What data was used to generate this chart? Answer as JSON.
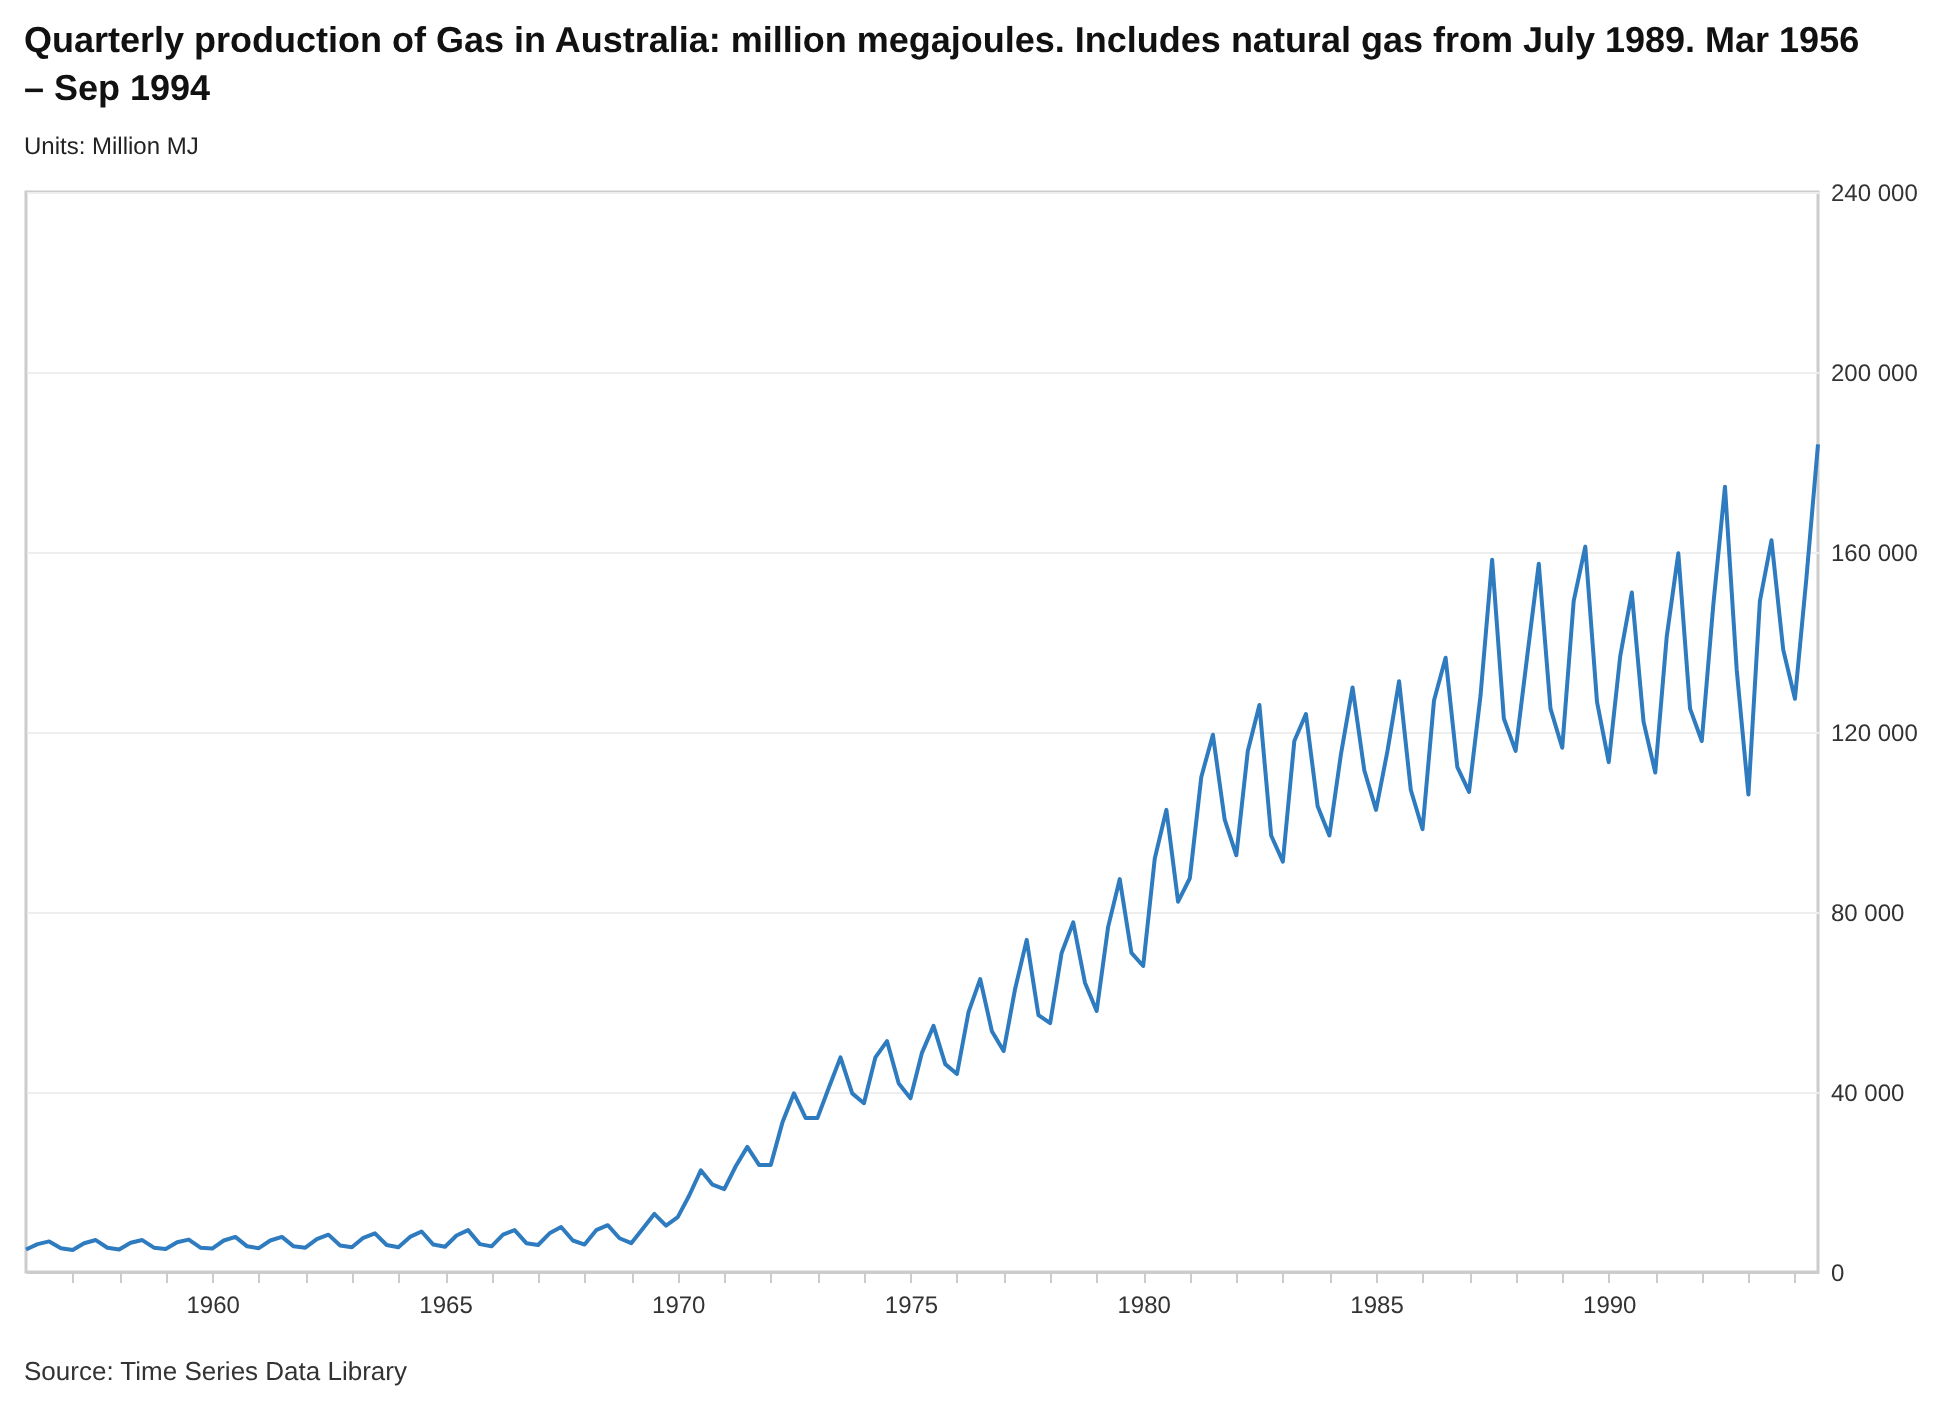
{
  "chart_data": {
    "type": "line",
    "title": "Quarterly production of Gas in Australia: million megajoules. Includes natural gas from July 1989. Mar 1956 – Sep 1994",
    "subtitle": "Units: Million MJ",
    "annotations": [
      "Source: Time Series Data Library"
    ],
    "x": [
      "1956-01",
      "1956-04",
      "1956-07",
      "1956-10",
      "1957-01",
      "1957-04",
      "1957-07",
      "1957-10",
      "1958-01",
      "1958-04",
      "1958-07",
      "1958-10",
      "1959-01",
      "1959-04",
      "1959-07",
      "1959-10",
      "1960-01",
      "1960-04",
      "1960-07",
      "1960-10",
      "1961-01",
      "1961-04",
      "1961-07",
      "1961-10",
      "1962-01",
      "1962-04",
      "1962-07",
      "1962-10",
      "1963-01",
      "1963-04",
      "1963-07",
      "1963-10",
      "1964-01",
      "1964-04",
      "1964-07",
      "1964-10",
      "1965-01",
      "1965-04",
      "1965-07",
      "1965-10",
      "1966-01",
      "1966-04",
      "1966-07",
      "1966-10",
      "1967-01",
      "1967-04",
      "1967-07",
      "1967-10",
      "1968-01",
      "1968-04",
      "1968-07",
      "1968-10",
      "1969-01",
      "1969-04",
      "1969-07",
      "1969-10",
      "1970-01",
      "1970-04",
      "1970-07",
      "1970-10",
      "1971-01",
      "1971-04",
      "1971-07",
      "1971-10",
      "1972-01",
      "1972-04",
      "1972-07",
      "1972-10",
      "1973-01",
      "1973-04",
      "1973-07",
      "1973-10",
      "1974-01",
      "1974-04",
      "1974-07",
      "1974-10",
      "1975-01",
      "1975-04",
      "1975-07",
      "1975-10",
      "1976-01",
      "1976-04",
      "1976-07",
      "1976-10",
      "1977-01",
      "1977-04",
      "1977-07",
      "1977-10",
      "1978-01",
      "1978-04",
      "1978-07",
      "1978-10",
      "1979-01",
      "1979-04",
      "1979-07",
      "1979-10",
      "1980-01",
      "1980-04",
      "1980-07",
      "1980-10",
      "1981-01",
      "1981-04",
      "1981-07",
      "1981-10",
      "1982-01",
      "1982-04",
      "1982-07",
      "1982-10",
      "1983-01",
      "1983-04",
      "1983-07",
      "1983-10",
      "1984-01",
      "1984-04",
      "1984-07",
      "1984-10",
      "1985-01",
      "1985-04",
      "1985-07",
      "1985-10",
      "1986-01",
      "1986-04",
      "1986-07",
      "1986-10",
      "1987-01",
      "1987-04",
      "1987-07",
      "1987-10",
      "1988-01",
      "1988-04",
      "1988-07",
      "1988-10",
      "1989-01",
      "1989-04",
      "1989-07",
      "1989-10",
      "1990-01",
      "1990-04",
      "1990-07",
      "1990-10",
      "1991-01",
      "1991-04",
      "1991-07",
      "1991-10",
      "1992-01",
      "1992-04",
      "1992-07",
      "1992-10",
      "1993-01",
      "1993-04",
      "1993-07",
      "1993-10",
      "1994-01",
      "1994-04",
      "1994-07"
    ],
    "series": [
      {
        "color": "#2f7bbf",
        "values": [
          5000,
          6200,
          6800,
          5300,
          4900,
          6400,
          7100,
          5400,
          5000,
          6500,
          7100,
          5400,
          5100,
          6600,
          7200,
          5400,
          5200,
          7000,
          7800,
          5700,
          5300,
          7000,
          7800,
          5700,
          5400,
          7300,
          8300,
          5900,
          5500,
          7600,
          8600,
          6000,
          5500,
          7800,
          9000,
          6100,
          5600,
          8100,
          9300,
          6200,
          5700,
          8300,
          9300,
          6400,
          6000,
          8600,
          10000,
          7000,
          6100,
          9300,
          10400,
          7500,
          6400,
          9600,
          12900,
          10300,
          12200,
          17000,
          22600,
          19400,
          18400,
          23500,
          27800,
          23800,
          23800,
          33200,
          39700,
          34200,
          34200,
          41000,
          47700,
          39700,
          37500,
          47700,
          51300,
          41900,
          38600,
          48700,
          54700,
          46200,
          44000,
          57800,
          65100,
          53500,
          49100,
          62900,
          73800,
          57100,
          55300,
          70900,
          77700,
          64300,
          58000,
          76700,
          87300,
          70900,
          68000,
          91900,
          102700,
          82300,
          87500,
          110000,
          119400,
          100600,
          92600,
          115800,
          126000,
          97000,
          91200,
          118000,
          124000,
          103500,
          97000,
          115100,
          129900,
          111500,
          102700,
          115800,
          131300,
          107100,
          98400,
          127000,
          136500,
          112200,
          106700,
          128100,
          158300,
          123000,
          115800,
          136800,
          157400,
          125200,
          116500,
          149100,
          161200,
          126700,
          113300,
          136800,
          151000,
          122300,
          111000,
          141200,
          159700,
          125200,
          118000,
          148400,
          174500,
          133900,
          106100,
          149100,
          162600,
          138300,
          127400,
          154200,
          183900
        ]
      }
    ],
    "xlim": [
      "1956-01",
      "1994-07"
    ],
    "xticks": [
      {
        "value": "1957",
        "label": null
      },
      {
        "value": "1958",
        "label": null
      },
      {
        "value": "1959",
        "label": null
      },
      "1960",
      {
        "value": "1961",
        "label": null
      },
      {
        "value": "1962",
        "label": null
      },
      {
        "value": "1963",
        "label": null
      },
      {
        "value": "1964",
        "label": null
      },
      "1965",
      {
        "value": "1966",
        "label": null
      },
      {
        "value": "1967",
        "label": null
      },
      {
        "value": "1968",
        "label": null
      },
      {
        "value": "1969",
        "label": null
      },
      "1970",
      {
        "value": "1971",
        "label": null
      },
      {
        "value": "1972",
        "label": null
      },
      {
        "value": "1973",
        "label": null
      },
      {
        "value": "1974",
        "label": null
      },
      "1975",
      {
        "value": "1976",
        "label": null
      },
      {
        "value": "1977",
        "label": null
      },
      {
        "value": "1978",
        "label": null
      },
      {
        "value": "1979",
        "label": null
      },
      "1980",
      {
        "value": "1981",
        "label": null
      },
      {
        "value": "1982",
        "label": null
      },
      {
        "value": "1983",
        "label": null
      },
      {
        "value": "1984",
        "label": null
      },
      "1985",
      {
        "value": "1986",
        "label": null
      },
      {
        "value": "1987",
        "label": null
      },
      {
        "value": "1988",
        "label": null
      },
      {
        "value": "1989",
        "label": null
      },
      "1990",
      {
        "value": "1991",
        "label": null
      },
      {
        "value": "1992",
        "label": null
      },
      {
        "value": "1993",
        "label": null
      },
      {
        "value": "1994",
        "label": null
      }
    ],
    "ylim": [
      0,
      240000
    ],
    "yticks": [
      0,
      {
        "value": 40000,
        "label": "40 000"
      },
      {
        "value": 80000,
        "label": "80 000"
      },
      {
        "value": 120000,
        "label": "120 000"
      },
      {
        "value": 160000,
        "label": "160 000"
      },
      {
        "value": 200000,
        "label": "200 000"
      },
      {
        "value": 240000,
        "label": "240 000"
      }
    ],
    "grid": "y",
    "marker": "none",
    "line_style": "solid"
  }
}
